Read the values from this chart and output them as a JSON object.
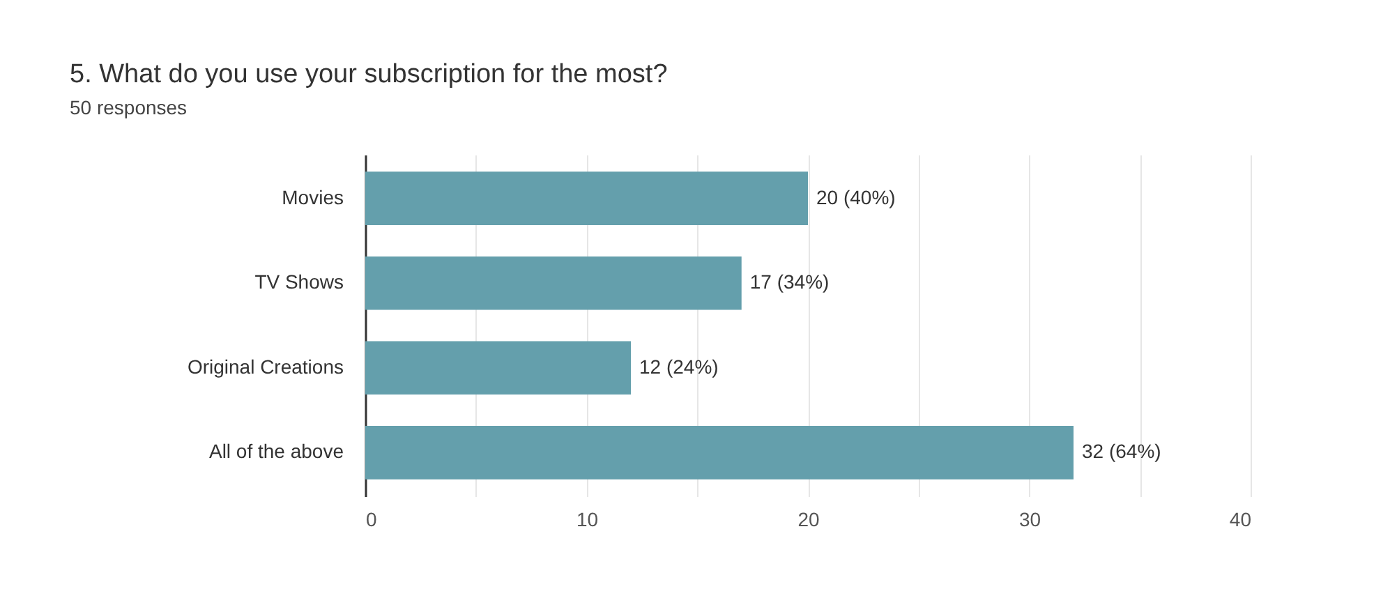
{
  "chart_data": {
    "type": "bar",
    "orientation": "horizontal",
    "title": "5. What do you use your subscription for the most?",
    "subtitle": "50 responses",
    "categories": [
      "Movies",
      "TV Shows",
      "Original Creations",
      "All of the above"
    ],
    "values": [
      20,
      17,
      12,
      32
    ],
    "value_labels": [
      "20 (40%)",
      "17 (34%)",
      "12 (24%)",
      "32 (64%)"
    ],
    "color": "#649fac",
    "xlim": [
      0,
      40
    ],
    "xticks": [
      0,
      {
        "value": 5,
        "label": null
      },
      10,
      {
        "value": 15,
        "label": null
      },
      20,
      {
        "value": 25,
        "label": null
      },
      30,
      {
        "value": 35,
        "label": null
      },
      40
    ],
    "grid": "x"
  }
}
